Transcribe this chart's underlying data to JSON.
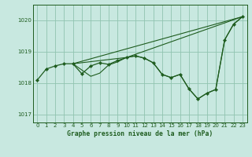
{
  "bg_color": "#c8e8e0",
  "line_color": "#1e5c1e",
  "grid_color": "#90c4b0",
  "ylim": [
    1016.75,
    1020.5
  ],
  "yticks": [
    1017,
    1018,
    1019,
    1020
  ],
  "xlim": [
    -0.5,
    23.5
  ],
  "xticks": [
    0,
    1,
    2,
    3,
    4,
    5,
    6,
    7,
    8,
    9,
    10,
    11,
    12,
    13,
    14,
    15,
    16,
    17,
    18,
    19,
    20,
    21,
    22,
    23
  ],
  "xlabel": "Graphe pression niveau de la mer (hPa)",
  "main_x": [
    0,
    1,
    2,
    3,
    4,
    5,
    6,
    7,
    8,
    9,
    10,
    11,
    12,
    13,
    14,
    15,
    16,
    17,
    18,
    19,
    20,
    21,
    22,
    23
  ],
  "main_y": [
    1018.1,
    1018.45,
    1018.55,
    1018.62,
    1018.62,
    1018.3,
    1018.55,
    1018.65,
    1018.6,
    1018.72,
    1018.82,
    1018.87,
    1018.8,
    1018.65,
    1018.28,
    1018.18,
    1018.28,
    1017.82,
    1017.5,
    1017.68,
    1017.8,
    1019.38,
    1019.88,
    1020.12
  ],
  "fan_line1_x": [
    4,
    23
  ],
  "fan_line1_y": [
    1018.62,
    1020.12
  ],
  "fan_line2_x": [
    4,
    10,
    23
  ],
  "fan_line2_y": [
    1018.62,
    1018.82,
    1020.12
  ],
  "fan_line3_x": [
    4,
    6,
    7,
    8,
    9,
    10,
    11,
    12,
    13,
    14,
    15,
    16,
    17,
    18,
    19,
    20,
    21,
    22,
    23
  ],
  "fan_line3_y": [
    1018.62,
    1018.22,
    1018.32,
    1018.58,
    1018.68,
    1018.82,
    1018.87,
    1018.8,
    1018.65,
    1018.28,
    1018.18,
    1018.28,
    1017.82,
    1017.5,
    1017.68,
    1017.8,
    1019.38,
    1019.88,
    1020.12
  ]
}
